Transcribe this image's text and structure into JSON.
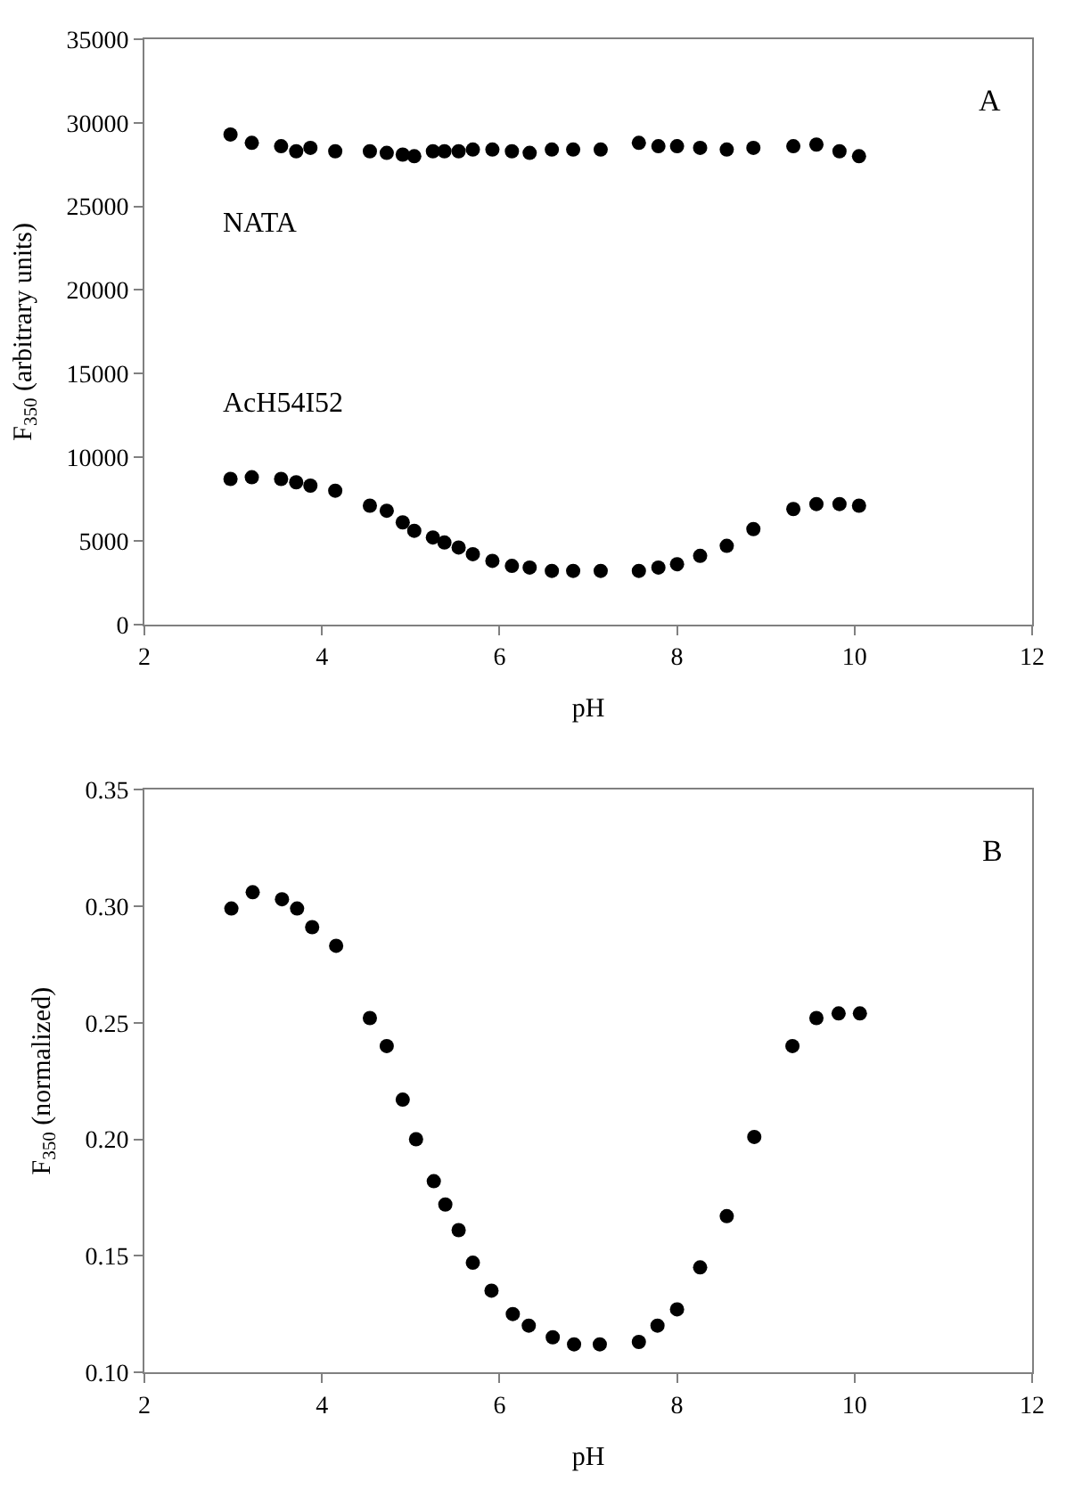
{
  "chart_data": [
    {
      "type": "scatter",
      "xlabel": "pH",
      "ylabel": "F$_{350}$ (arbitrary units)",
      "annotations": [
        "A"
      ],
      "marker": "circle",
      "grid": false,
      "legend": false,
      "xlim": [
        2,
        12
      ],
      "xticks": [
        2,
        4,
        6,
        8,
        10,
        12
      ],
      "ylim": [
        0,
        35000
      ],
      "yticks": [
        0,
        5000,
        10000,
        15000,
        20000,
        25000,
        30000,
        35000
      ],
      "x": [
        2.97,
        3.21,
        3.54,
        3.71,
        3.87,
        4.15,
        4.54,
        4.73,
        4.91,
        5.04,
        5.25,
        5.38,
        5.54,
        5.7,
        5.92,
        6.14,
        6.34,
        6.59,
        6.83,
        7.14,
        7.57,
        7.79,
        8.0,
        8.26,
        8.56,
        8.86,
        9.31,
        9.57,
        9.83,
        10.05
      ],
      "series": [
        {
          "name": "NATA",
          "color": "#000000",
          "values": [
            29300,
            28800,
            28600,
            28300,
            28500,
            28300,
            28300,
            28200,
            28100,
            28000,
            28300,
            28300,
            28300,
            28400,
            28400,
            28300,
            28200,
            28400,
            28400,
            28400,
            28800,
            28600,
            28600,
            28500,
            28400,
            28500,
            28600,
            28700,
            28300,
            28000
          ]
        },
        {
          "name": "AcH54I52",
          "color": "#000000",
          "values": [
            8700,
            8800,
            8700,
            8500,
            8300,
            8000,
            7100,
            6800,
            6100,
            5600,
            5200,
            4900,
            4600,
            4200,
            3800,
            3500,
            3400,
            3200,
            3200,
            3200,
            3200,
            3400,
            3600,
            4100,
            4700,
            5700,
            6900,
            7200,
            7200,
            7100
          ]
        }
      ]
    },
    {
      "type": "scatter",
      "xlabel": "pH",
      "ylabel": "F$_{350}$ (normalized)",
      "annotations": [
        "B"
      ],
      "marker": "circle",
      "grid": false,
      "legend": false,
      "xlim": [
        2,
        12
      ],
      "xticks": [
        2,
        4,
        6,
        8,
        10,
        12
      ],
      "ylim": [
        0.1,
        0.35
      ],
      "yticks": [
        {
          "value": 0.1,
          "label": "0.10"
        },
        {
          "value": 0.15,
          "label": "0.15"
        },
        {
          "value": 0.2,
          "label": "0.20"
        },
        {
          "value": 0.25,
          "label": "0.25"
        },
        {
          "value": 0.3,
          "label": "0.30"
        },
        {
          "value": 0.35,
          "label": "0.35"
        }
      ],
      "x": [
        2.98,
        3.22,
        3.55,
        3.72,
        3.89,
        4.16,
        4.54,
        4.73,
        4.91,
        5.06,
        5.26,
        5.39,
        5.54,
        5.7,
        5.91,
        6.15,
        6.33,
        6.6,
        6.84,
        7.13,
        7.57,
        7.78,
        8.0,
        8.26,
        8.56,
        8.87,
        9.3,
        9.57,
        9.82,
        10.06
      ],
      "series": [
        {
          "color": "#000000",
          "values": [
            0.299,
            0.306,
            0.303,
            0.299,
            0.291,
            0.283,
            0.252,
            0.24,
            0.217,
            0.2,
            0.182,
            0.172,
            0.161,
            0.147,
            0.135,
            0.125,
            0.12,
            0.115,
            0.112,
            0.112,
            0.113,
            0.12,
            0.127,
            0.145,
            0.167,
            0.201,
            0.24,
            0.252,
            0.254,
            0.254
          ]
        }
      ]
    }
  ]
}
